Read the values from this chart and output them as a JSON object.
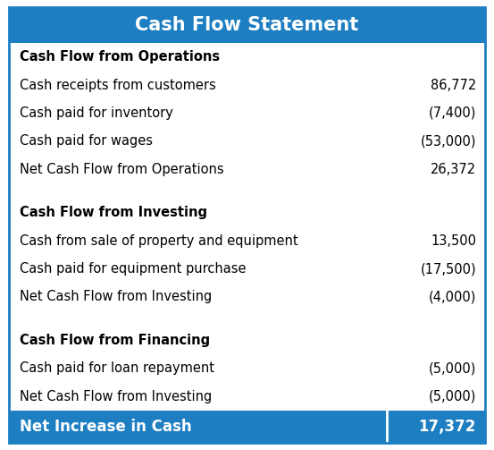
{
  "title": "Cash Flow Statement",
  "title_bg_color": "#1d7ec1",
  "title_text_color": "#ffffff",
  "footer_bg_color": "#1d7ec1",
  "footer_text_color": "#ffffff",
  "bg_color": "#ffffff",
  "border_color": "#1d7ec1",
  "rows": [
    {
      "label": "Cash Flow from Operations",
      "value": "",
      "bold": true,
      "spacer": false
    },
    {
      "label": "Cash receipts from customers",
      "value": "86,772",
      "bold": false,
      "spacer": false
    },
    {
      "label": "Cash paid for inventory",
      "value": "(7,400)",
      "bold": false,
      "spacer": false
    },
    {
      "label": "Cash paid for wages",
      "value": "(53,000)",
      "bold": false,
      "spacer": false
    },
    {
      "label": "Net Cash Flow from Operations",
      "value": "26,372",
      "bold": false,
      "spacer": false
    },
    {
      "label": "",
      "value": "",
      "bold": false,
      "spacer": true
    },
    {
      "label": "Cash Flow from Investing",
      "value": "",
      "bold": true,
      "spacer": false
    },
    {
      "label": "Cash from sale of property and equipment",
      "value": "13,500",
      "bold": false,
      "spacer": false
    },
    {
      "label": "Cash paid for equipment purchase",
      "value": "(17,500)",
      "bold": false,
      "spacer": false
    },
    {
      "label": "Net Cash Flow from Investing",
      "value": "(4,000)",
      "bold": false,
      "spacer": false
    },
    {
      "label": "",
      "value": "",
      "bold": false,
      "spacer": true
    },
    {
      "label": "Cash Flow from Financing",
      "value": "",
      "bold": true,
      "spacer": false
    },
    {
      "label": "Cash paid for loan repayment",
      "value": "(5,000)",
      "bold": false,
      "spacer": false
    },
    {
      "label": "Net Cash Flow from Investing",
      "value": "(5,000)",
      "bold": false,
      "spacer": false
    }
  ],
  "footer_label": "Net Increase in Cash",
  "footer_value": "17,372",
  "figure_width": 5.53,
  "figure_height": 5.03,
  "dpi": 100
}
